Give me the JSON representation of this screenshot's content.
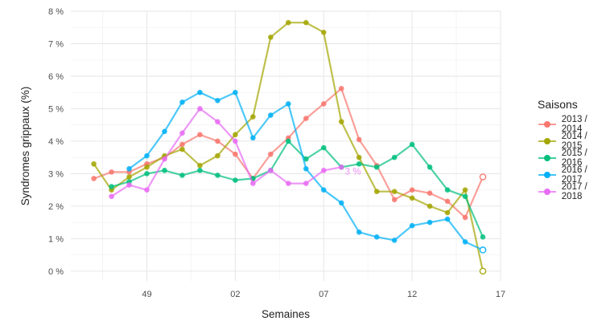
{
  "chart_data": {
    "type": "line",
    "title": "",
    "xlabel": "Semaines",
    "ylabel": "Syndromes grippaux (%)",
    "x_ticks": [
      "49",
      "02",
      "07",
      "12",
      "17"
    ],
    "x_tick_positions": [
      49,
      54,
      59,
      64,
      69
    ],
    "xlim": [
      44.7,
      69
    ],
    "y_ticks": [
      "0 %",
      "1 %",
      "2 %",
      "3 %",
      "4 %",
      "5 %",
      "6 %",
      "7 %",
      "8 %"
    ],
    "ylim": [
      -0.3,
      8.0
    ],
    "grid": true,
    "legend_title": "Saisons",
    "legend_position": "right",
    "annotation": "3 %",
    "series": [
      {
        "name": "2013 / 2014",
        "color": "#F8766D",
        "x": [
          46,
          47,
          48,
          49,
          50,
          51,
          52,
          53,
          54,
          55,
          56,
          57,
          58,
          59,
          60,
          61,
          62,
          63,
          64,
          65,
          66,
          67,
          68
        ],
        "y": [
          2.85,
          3.05,
          3.05,
          3.3,
          3.5,
          3.9,
          4.2,
          4.0,
          3.6,
          2.85,
          3.6,
          4.1,
          4.7,
          5.15,
          5.62,
          4.05,
          3.25,
          2.2,
          2.5,
          2.4,
          2.15,
          1.65,
          2.9
        ],
        "hollow_last": true
      },
      {
        "name": "2014 / 2015",
        "color": "#A3A500",
        "x": [
          46,
          47,
          48,
          49,
          50,
          51,
          52,
          53,
          54,
          55,
          56,
          57,
          58,
          59,
          60,
          61,
          62,
          63,
          64,
          65,
          66,
          67,
          68
        ],
        "y": [
          3.3,
          2.5,
          2.9,
          3.2,
          3.55,
          3.75,
          3.25,
          3.55,
          4.2,
          4.75,
          7.2,
          7.65,
          7.65,
          7.35,
          4.6,
          3.5,
          2.45,
          2.45,
          2.25,
          2.0,
          1.8,
          2.5,
          0.0
        ],
        "hollow_last": true
      },
      {
        "name": "2015 / 2016",
        "color": "#00BF7D",
        "x": [
          47,
          48,
          49,
          50,
          51,
          52,
          53,
          54,
          55,
          56,
          57,
          58,
          59,
          60,
          61,
          62,
          63,
          64,
          65,
          66,
          67,
          68
        ],
        "y": [
          2.6,
          2.75,
          3.0,
          3.1,
          2.95,
          3.1,
          2.95,
          2.8,
          2.85,
          3.1,
          4.0,
          3.45,
          3.8,
          3.2,
          3.3,
          3.2,
          3.5,
          3.9,
          3.2,
          2.5,
          2.3,
          1.05
        ],
        "hollow_last": false
      },
      {
        "name": "2016 / 2017",
        "color": "#00B0F6",
        "x": [
          48,
          49,
          50,
          51,
          52,
          53,
          54,
          55,
          56,
          57,
          58,
          59,
          60,
          61,
          62,
          63,
          64,
          65,
          66,
          67,
          68
        ],
        "y": [
          3.15,
          3.55,
          4.3,
          5.2,
          5.5,
          5.25,
          5.5,
          4.1,
          4.8,
          5.15,
          3.15,
          2.5,
          2.1,
          1.2,
          1.05,
          0.95,
          1.4,
          1.5,
          1.6,
          0.9,
          0.65
        ],
        "hollow_last": true
      },
      {
        "name": "2017 / 2018",
        "color": "#E76BF3",
        "x": [
          47,
          48,
          49,
          50,
          51,
          52,
          53,
          54,
          55,
          56,
          57,
          58,
          59,
          60
        ],
        "y": [
          2.3,
          2.65,
          2.5,
          3.45,
          4.25,
          5.0,
          4.6,
          4.0,
          2.7,
          3.1,
          2.7,
          2.7,
          3.1,
          3.2
        ],
        "hollow_last": false
      }
    ]
  }
}
